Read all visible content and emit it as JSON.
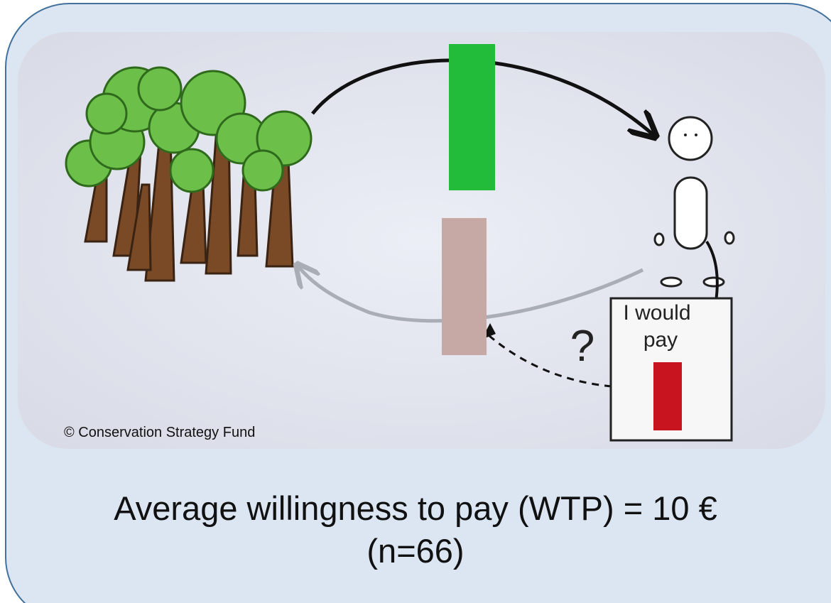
{
  "image": {
    "credit": "© Conservation Strategy Fund",
    "sign": {
      "lines": [
        "I would",
        "pay"
      ]
    },
    "question_mark": "?"
  },
  "caption": {
    "lines": [
      "Average willingness to pay (WTP) = 10 €",
      "(n=66)"
    ]
  }
}
